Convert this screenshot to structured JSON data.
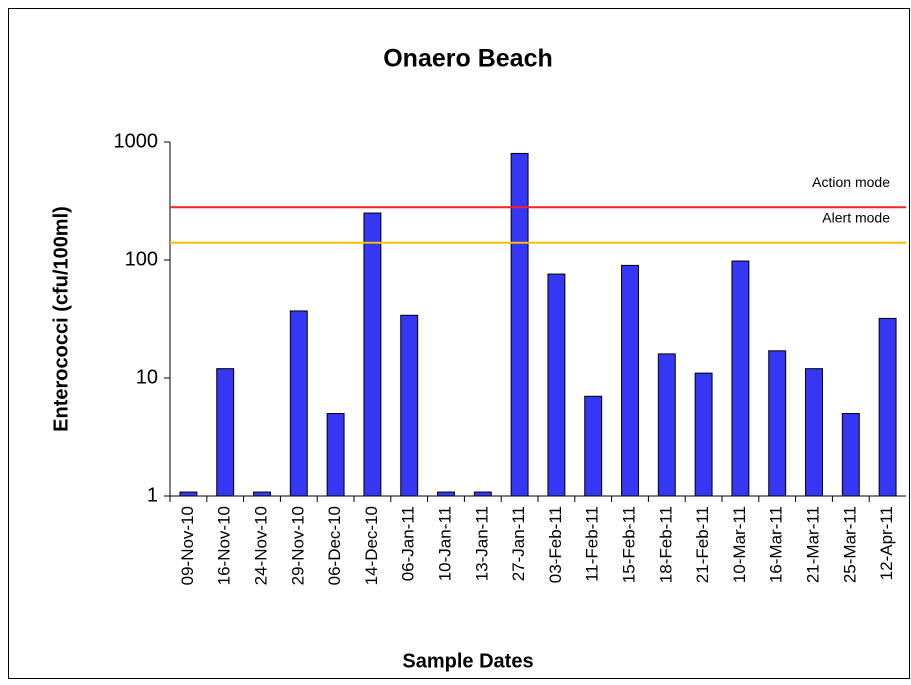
{
  "chart_data": {
    "type": "bar",
    "title": "Onaero Beach",
    "x_label": "Sample Dates",
    "y_label": "Enterococci (cfu/100ml)",
    "categories": [
      "09-Nov-10",
      "16-Nov-10",
      "24-Nov-10",
      "29-Nov-10",
      "06-Dec-10",
      "14-Dec-10",
      "06-Jan-11",
      "10-Jan-11",
      "13-Jan-11",
      "27-Jan-11",
      "03-Feb-11",
      "11-Feb-11",
      "15-Feb-11",
      "18-Feb-11",
      "21-Feb-11",
      "10-Mar-11",
      "16-Mar-11",
      "21-Mar-11",
      "25-Mar-11",
      "12-Apr-11"
    ],
    "values": [
      1.08,
      12,
      1.08,
      37,
      5,
      250,
      34,
      1.08,
      1.08,
      800,
      76,
      7,
      90,
      16,
      11,
      98,
      17,
      12,
      5,
      32
    ],
    "color": "#3636f5",
    "log_scale": true,
    "ylim": [
      1,
      1000
    ],
    "yticks": [
      1,
      10,
      100,
      1000
    ],
    "reference_lines": [
      {
        "name": "Action mode",
        "value": 280,
        "color": "#ff2020"
      },
      {
        "name": "Alert mode",
        "value": 140,
        "color": "#f5c000"
      }
    ]
  }
}
